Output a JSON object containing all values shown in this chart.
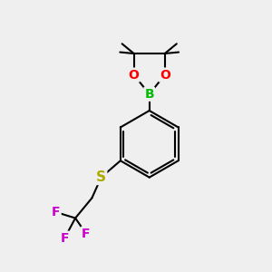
{
  "bg_color": "#efefef",
  "bond_color": "#000000",
  "bond_width": 1.5,
  "atom_colors": {
    "B": "#00bb00",
    "O": "#ff0000",
    "S": "#aaaa00",
    "F": "#cc00cc",
    "C": "#000000"
  },
  "atom_fontsizes": {
    "B": 10,
    "O": 10,
    "S": 11,
    "F": 10
  },
  "xlim": [
    0,
    10
  ],
  "ylim": [
    0,
    10
  ]
}
